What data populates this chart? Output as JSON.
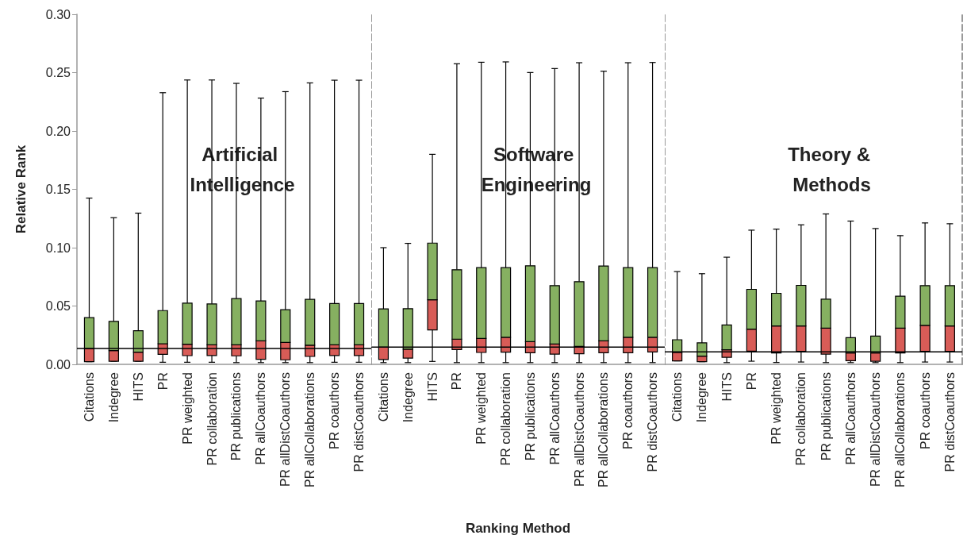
{
  "chart_data": [
    {
      "type": "box",
      "title": "Artificial Intelligence",
      "ylabel": "Relative Rank",
      "categories": [
        "Citations",
        "Indegree",
        "HITS",
        "PR",
        "PR weighted",
        "PR collaboration",
        "PR publications",
        "PR allCoauthors",
        "PR allDistCoauthors",
        "PR allCollaborations",
        "PR coauthors",
        "PR distCoauthors"
      ],
      "boxes": [
        {
          "low": 0.0023,
          "q1": 0.0023,
          "median": 0.0136,
          "q3": 0.04,
          "high": 0.1425
        },
        {
          "low": 0.0027,
          "q1": 0.0027,
          "median": 0.0118,
          "q3": 0.0368,
          "high": 0.1257
        },
        {
          "low": 0.0027,
          "q1": 0.0027,
          "median": 0.0104,
          "q3": 0.0288,
          "high": 0.1296
        },
        {
          "low": 0.0018,
          "q1": 0.0086,
          "median": 0.0177,
          "q3": 0.0461,
          "high": 0.2328
        },
        {
          "low": 0.0018,
          "q1": 0.0075,
          "median": 0.0173,
          "q3": 0.0525,
          "high": 0.2437
        },
        {
          "low": 0.0018,
          "q1": 0.0075,
          "median": 0.0168,
          "q3": 0.0518,
          "high": 0.2437
        },
        {
          "low": 0.0015,
          "q1": 0.0073,
          "median": 0.0168,
          "q3": 0.0564,
          "high": 0.2408
        },
        {
          "low": 0.0015,
          "q1": 0.0043,
          "median": 0.0202,
          "q3": 0.0543,
          "high": 0.2282
        },
        {
          "low": 0.0015,
          "q1": 0.0039,
          "median": 0.0188,
          "q3": 0.0468,
          "high": 0.2337
        },
        {
          "low": 0.0015,
          "q1": 0.0068,
          "median": 0.0164,
          "q3": 0.0557,
          "high": 0.2412
        },
        {
          "low": 0.0018,
          "q1": 0.0075,
          "median": 0.0168,
          "q3": 0.0521,
          "high": 0.2435
        },
        {
          "low": 0.0018,
          "q1": 0.0075,
          "median": 0.0168,
          "q3": 0.0521,
          "high": 0.2435
        }
      ],
      "colors": [
        "#d85c57",
        "#d85c57",
        "#d85c57",
        "#d85c57",
        "#d85c57",
        "#d85c57",
        "#d85c57",
        "#d85c57",
        "#d85c57",
        "#d85c57",
        "#d85c57",
        "#d85c57"
      ],
      "ylim": [
        0,
        0.3
      ],
      "yticks": [
        {
          "value": 0,
          "label": "0.00"
        },
        {
          "value": 0.05,
          "label": "0.05"
        },
        {
          "value": 0.1,
          "label": "0.10"
        },
        {
          "value": 0.15,
          "label": "0.15"
        },
        {
          "value": 0.2,
          "label": "0.20"
        },
        {
          "value": 0.25,
          "label": "0.25"
        },
        {
          "value": 0.3,
          "label": "0.30"
        }
      ],
      "ref_lines": [
        {
          "axis": "y",
          "value": 0.0136,
          "color": "#000000"
        }
      ]
    },
    {
      "type": "box",
      "title": "Software Engineering",
      "xlabel": "Ranking Method",
      "categories": [
        "Citations",
        "Indegree",
        "HITS",
        "PR",
        "PR weighted",
        "PR collaboration",
        "PR publications",
        "PR allCoauthors",
        "PR allDistCoauthors",
        "PR allCollaborations",
        "PR coauthors",
        "PR distCoauthors"
      ],
      "boxes": [
        {
          "low": 0.0015,
          "q1": 0.0041,
          "median": 0.0148,
          "q3": 0.0475,
          "high": 0.1
        },
        {
          "low": 0.0015,
          "q1": 0.0054,
          "median": 0.013,
          "q3": 0.0477,
          "high": 0.1037
        },
        {
          "low": 0.0025,
          "q1": 0.0295,
          "median": 0.0554,
          "q3": 0.1039,
          "high": 0.18
        },
        {
          "low": 0.0015,
          "q1": 0.0127,
          "median": 0.0216,
          "q3": 0.0811,
          "high": 0.2576
        },
        {
          "low": 0.0015,
          "q1": 0.0102,
          "median": 0.0222,
          "q3": 0.0829,
          "high": 0.2589
        },
        {
          "low": 0.0015,
          "q1": 0.0104,
          "median": 0.0232,
          "q3": 0.0829,
          "high": 0.2592
        },
        {
          "low": 0.0015,
          "q1": 0.01,
          "median": 0.0195,
          "q3": 0.0845,
          "high": 0.2501
        },
        {
          "low": 0.0015,
          "q1": 0.0088,
          "median": 0.0175,
          "q3": 0.0675,
          "high": 0.2535
        },
        {
          "low": 0.0015,
          "q1": 0.0091,
          "median": 0.0154,
          "q3": 0.0709,
          "high": 0.2585
        },
        {
          "low": 0.0015,
          "q1": 0.01,
          "median": 0.0202,
          "q3": 0.0843,
          "high": 0.2512
        },
        {
          "low": 0.0015,
          "q1": 0.01,
          "median": 0.0232,
          "q3": 0.0829,
          "high": 0.2585
        },
        {
          "low": 0.0015,
          "q1": 0.0106,
          "median": 0.0232,
          "q3": 0.0829,
          "high": 0.2587
        }
      ],
      "colors": [
        "#d85c57",
        "#d85c57",
        "#d85c57",
        "#d85c57",
        "#d85c57",
        "#d85c57",
        "#d85c57",
        "#d85c57",
        "#d85c57",
        "#d85c57",
        "#d85c57",
        "#d85c57"
      ],
      "ylim": [
        0,
        0.3
      ],
      "tick_labels": "x",
      "ref_lines": [
        {
          "axis": "y",
          "value": 0.0148,
          "color": "#000000"
        }
      ]
    },
    {
      "type": "box",
      "title": "Theory & Methods",
      "categories": [
        "Citations",
        "Indegree",
        "HITS",
        "PR",
        "PR weighted",
        "PR collaboration",
        "PR publications",
        "PR allCoauthors",
        "PR allDistCoauthors",
        "PR allCollaborations",
        "PR coauthors",
        "PR distCoauthors"
      ],
      "boxes": [
        {
          "low": 0.003,
          "q1": 0.003,
          "median": 0.0102,
          "q3": 0.0211,
          "high": 0.0795
        },
        {
          "low": 0.0023,
          "q1": 0.0023,
          "median": 0.007,
          "q3": 0.0184,
          "high": 0.0777
        },
        {
          "low": 0.0015,
          "q1": 0.0061,
          "median": 0.0125,
          "q3": 0.0338,
          "high": 0.0918
        },
        {
          "low": 0.0027,
          "q1": 0.0113,
          "median": 0.0302,
          "q3": 0.0643,
          "high": 0.115
        },
        {
          "low": 0.0016,
          "q1": 0.0098,
          "median": 0.0329,
          "q3": 0.0609,
          "high": 0.1159
        },
        {
          "low": 0.002,
          "q1": 0.0111,
          "median": 0.0329,
          "q3": 0.0677,
          "high": 0.1196
        },
        {
          "low": 0.0015,
          "q1": 0.0088,
          "median": 0.0311,
          "q3": 0.0559,
          "high": 0.1289
        },
        {
          "low": 0.0015,
          "q1": 0.0032,
          "median": 0.0097,
          "q3": 0.0229,
          "high": 0.1228
        },
        {
          "low": 0.0015,
          "q1": 0.0027,
          "median": 0.0097,
          "q3": 0.0243,
          "high": 0.1164
        },
        {
          "low": 0.0015,
          "q1": 0.0098,
          "median": 0.0311,
          "q3": 0.0584,
          "high": 0.1103
        },
        {
          "low": 0.002,
          "q1": 0.0111,
          "median": 0.0334,
          "q3": 0.0675,
          "high": 0.1212
        },
        {
          "low": 0.002,
          "q1": 0.0111,
          "median": 0.0329,
          "q3": 0.0675,
          "high": 0.1205
        }
      ],
      "colors": [
        "#d85c57",
        "#d85c57",
        "#d85c57",
        "#d85c57",
        "#d85c57",
        "#d85c57",
        "#d85c57",
        "#d85c57",
        "#d85c57",
        "#d85c57",
        "#d85c57",
        "#d85c57"
      ],
      "ylim": [
        0,
        0.3
      ],
      "tick_labels": "x",
      "ref_lines": [
        {
          "axis": "y",
          "value": 0.0107,
          "color": "#000000"
        }
      ]
    }
  ]
}
